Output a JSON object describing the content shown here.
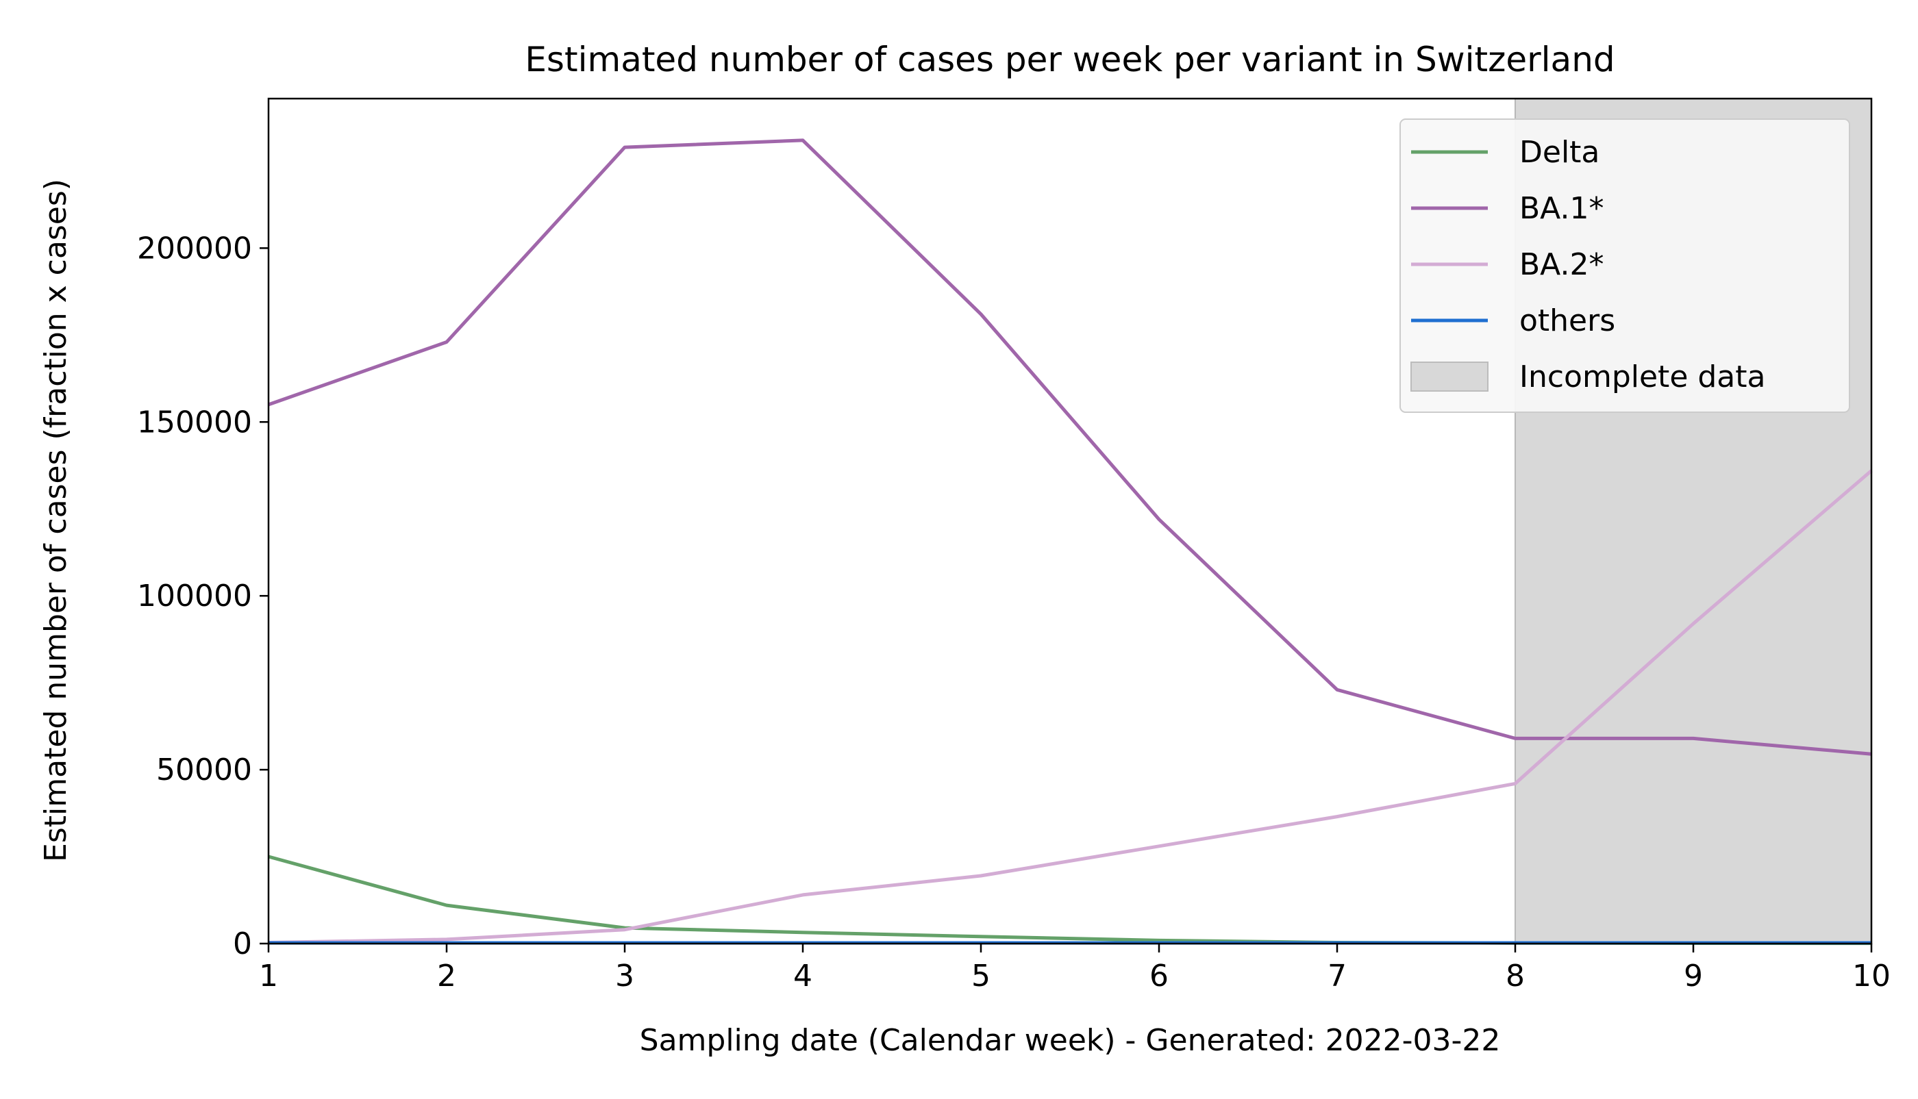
{
  "chart_data": {
    "type": "line",
    "title": "Estimated number of cases per week per variant in Switzerland",
    "xlabel": "Sampling date (Calendar week) - Generated: 2022-03-22",
    "ylabel": "Estimated number of cases (fraction x cases)",
    "xlim": [
      1,
      10
    ],
    "ylim": [
      0,
      243000
    ],
    "x_ticks": [
      1,
      2,
      3,
      4,
      5,
      6,
      7,
      8,
      9,
      10
    ],
    "y_ticks": [
      0,
      50000,
      100000,
      150000,
      200000
    ],
    "x": [
      1,
      2,
      3,
      4,
      5,
      6,
      7,
      8,
      9,
      10
    ],
    "series": [
      {
        "name": "Delta",
        "color": "#64a169",
        "values": [
          25000,
          11000,
          4500,
          3200,
          2000,
          900,
          300,
          150,
          100,
          80
        ]
      },
      {
        "name": "BA.1*",
        "color": "#a066aa",
        "values": [
          155000,
          173000,
          229000,
          231000,
          181000,
          122000,
          73000,
          59000,
          59000,
          54500
        ]
      },
      {
        "name": "BA.2*",
        "color": "#d3acd4",
        "values": [
          300,
          1200,
          4000,
          14000,
          19500,
          28000,
          36500,
          46000,
          92000,
          136000
        ]
      },
      {
        "name": "others",
        "color": "#1f6fd1",
        "values": [
          200,
          200,
          200,
          200,
          200,
          200,
          200,
          200,
          200,
          200
        ]
      }
    ],
    "shaded_region": {
      "label": "Incomplete data",
      "x_start": 8,
      "x_end": 10,
      "color": "#d8d8d8"
    },
    "legend_position": "top-right",
    "grid": false
  }
}
